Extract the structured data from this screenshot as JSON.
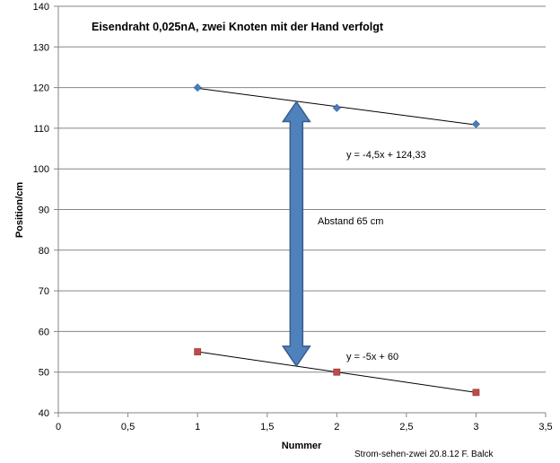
{
  "chart_data": {
    "type": "scatter",
    "title": "Eisendraht  0,025nA,  zwei Knoten mit der Hand verfolgt",
    "xlabel": "Nummer",
    "ylabel": "Position/cm",
    "xlim": [
      0,
      3.5
    ],
    "ylim": [
      40,
      140
    ],
    "x_ticks": [
      "0",
      "0,5",
      "1",
      "1,5",
      "2",
      "2,5",
      "3",
      "3,5"
    ],
    "y_ticks": [
      "40",
      "50",
      "60",
      "70",
      "80",
      "90",
      "100",
      "110",
      "120",
      "130",
      "140"
    ],
    "grid": "horizontal",
    "series": [
      {
        "marker": "diamond",
        "color": "#4A7EBB",
        "points": [
          {
            "x": 1,
            "y": 120
          },
          {
            "x": 2,
            "y": 115
          },
          {
            "x": 3,
            "y": 111
          }
        ],
        "trendline": {
          "slope": -4.5,
          "intercept": 124.33,
          "label": "y = -4,5x + 124,33"
        }
      },
      {
        "marker": "square",
        "color": "#BE4B48",
        "points": [
          {
            "x": 1,
            "y": 55
          },
          {
            "x": 2,
            "y": 50
          },
          {
            "x": 3,
            "y": 45
          }
        ],
        "trendline": {
          "slope": -5,
          "intercept": 60,
          "label": "y = -5x + 60"
        }
      }
    ],
    "annotation": {
      "shape": "double-arrow",
      "color": "#4F81BD",
      "label": "Abstand 65 cm",
      "x": 1.71,
      "y_from": 116.5,
      "y_to": 51.5
    },
    "footer": "Strom-sehen-zwei 20.8.12 F. Balck"
  }
}
